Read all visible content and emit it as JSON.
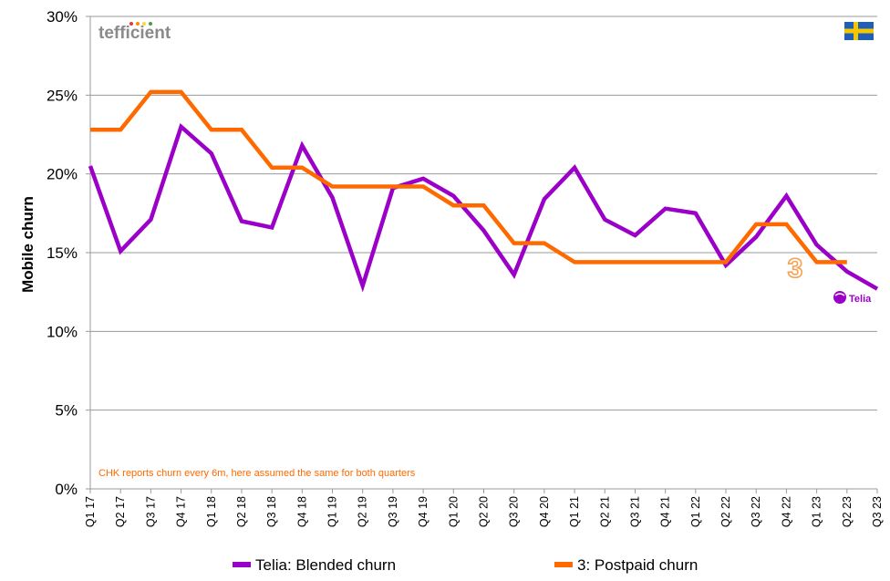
{
  "chart_data": {
    "type": "line",
    "ylabel": "Mobile churn",
    "xlabel": "",
    "ylim": [
      0,
      30
    ],
    "yticks": [
      "0%",
      "5%",
      "10%",
      "15%",
      "20%",
      "25%",
      "30%"
    ],
    "grid": "horizontal",
    "legend_position": "bottom",
    "categories": [
      "Q1 17",
      "Q2 17",
      "Q3 17",
      "Q4 17",
      "Q1 18",
      "Q2 18",
      "Q3 18",
      "Q4 18",
      "Q1 19",
      "Q2 19",
      "Q3 19",
      "Q4 19",
      "Q1 20",
      "Q2 20",
      "Q3 20",
      "Q4 20",
      "Q1 21",
      "Q2 21",
      "Q3 21",
      "Q4 21",
      "Q1 22",
      "Q2 22",
      "Q3 22",
      "Q4 22",
      "Q1 23",
      "Q2 23",
      "Q3 23"
    ],
    "series": [
      {
        "name": "Telia: Blended churn",
        "color": "#9b00c8",
        "values": [
          20.5,
          15.1,
          17.1,
          23.0,
          21.3,
          17.0,
          16.6,
          21.8,
          18.5,
          12.9,
          19.1,
          19.7,
          18.6,
          16.4,
          13.6,
          18.4,
          20.4,
          17.1,
          16.1,
          17.8,
          17.5,
          14.2,
          16.0,
          18.6,
          15.5,
          13.8,
          12.7
        ]
      },
      {
        "name": "3: Postpaid churn",
        "color": "#ff6a00",
        "values": [
          22.8,
          22.8,
          25.2,
          25.2,
          22.8,
          22.8,
          20.4,
          20.4,
          19.2,
          19.2,
          19.2,
          19.2,
          18.0,
          18.0,
          15.6,
          15.6,
          14.4,
          14.4,
          14.4,
          14.4,
          14.4,
          14.4,
          16.8,
          16.8,
          14.4,
          14.4,
          null
        ]
      }
    ],
    "annotations": {
      "note": "CHK reports churn every 6m, here assumed the same for both quarters",
      "note_color": "#ff6a00"
    }
  },
  "branding": {
    "logo_text": "tefficient",
    "telia_logo_text": "Telia",
    "three_logo_text": "3",
    "flag": "sweden-flag"
  }
}
